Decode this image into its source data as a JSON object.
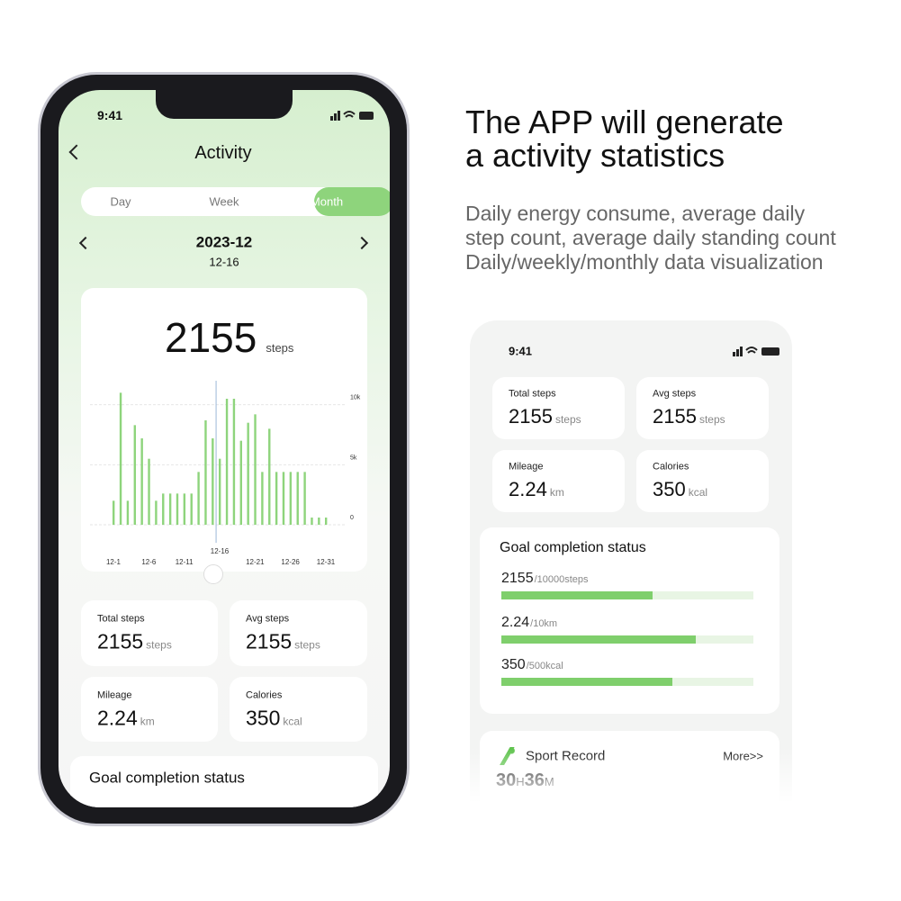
{
  "headline": [
    "The APP will generate",
    "a activity statistics"
  ],
  "description": [
    "Daily energy consume, average daily",
    "step count, average daily standing count",
    "Daily/weekly/monthly data visualization"
  ],
  "left_phone": {
    "status_time": "9:41",
    "title": "Activity",
    "tabs": [
      "Day",
      "Week",
      "Month"
    ],
    "active_tab": 2,
    "period": "2023-12",
    "range": "12-16",
    "total_steps": "2155",
    "total_unit": "steps",
    "chart_data": {
      "type": "bar",
      "color": "#8ed47c",
      "categories": [
        "12-1",
        null,
        null,
        null,
        null,
        "12-6",
        null,
        null,
        null,
        null,
        "12-11",
        null,
        null,
        null,
        null,
        "12-16",
        null,
        null,
        null,
        null,
        "12-21",
        null,
        null,
        null,
        null,
        "12-26",
        null,
        null,
        null,
        null,
        "12-31"
      ],
      "values": [
        2000,
        11000,
        2000,
        8300,
        7200,
        5500,
        2000,
        2600,
        2600,
        2600,
        2600,
        2600,
        4400,
        8700,
        7200,
        5500,
        10500,
        10500,
        7000,
        8500,
        9200,
        4400,
        8000,
        4400,
        4400,
        4400,
        4400,
        4400,
        600,
        600,
        600
      ],
      "selected": 15,
      "ylim": [
        0,
        12000
      ],
      "yticks": [
        0,
        {
          "value": 5000,
          "label": "5k"
        },
        {
          "value": 10000,
          "label": "10k"
        }
      ],
      "grid": true
    },
    "stats": [
      {
        "label": "Total steps",
        "value": "2155",
        "unit": "steps"
      },
      {
        "label": "Avg steps",
        "value": "2155",
        "unit": "steps"
      },
      {
        "label": "Mileage",
        "value": "2.24",
        "unit": "km"
      },
      {
        "label": "Calories",
        "value": "350",
        "unit": "kcal"
      }
    ],
    "goal_title": "Goal completion status"
  },
  "right_phone": {
    "status_time": "9:41",
    "stats": [
      {
        "label": "Total steps",
        "value": "2155",
        "unit": "steps"
      },
      {
        "label": "Avg steps",
        "value": "2155",
        "unit": "steps"
      },
      {
        "label": "Mileage",
        "value": "2.24",
        "unit": "km"
      },
      {
        "label": "Calories",
        "value": "350",
        "unit": "kcal"
      }
    ],
    "goal_title": "Goal completion status",
    "goals": [
      {
        "value": "2155",
        "target": "/10000steps",
        "fill": 0.6
      },
      {
        "value": "2.24",
        "target": "/10km",
        "fill": 0.77
      },
      {
        "value": "350",
        "target": "/500kcal",
        "fill": 0.68
      }
    ],
    "sport": {
      "title": "Sport Record",
      "more": "More>>",
      "hours": "30",
      "hours_unit": "H",
      "minutes": "36",
      "minutes_unit": "M"
    }
  }
}
